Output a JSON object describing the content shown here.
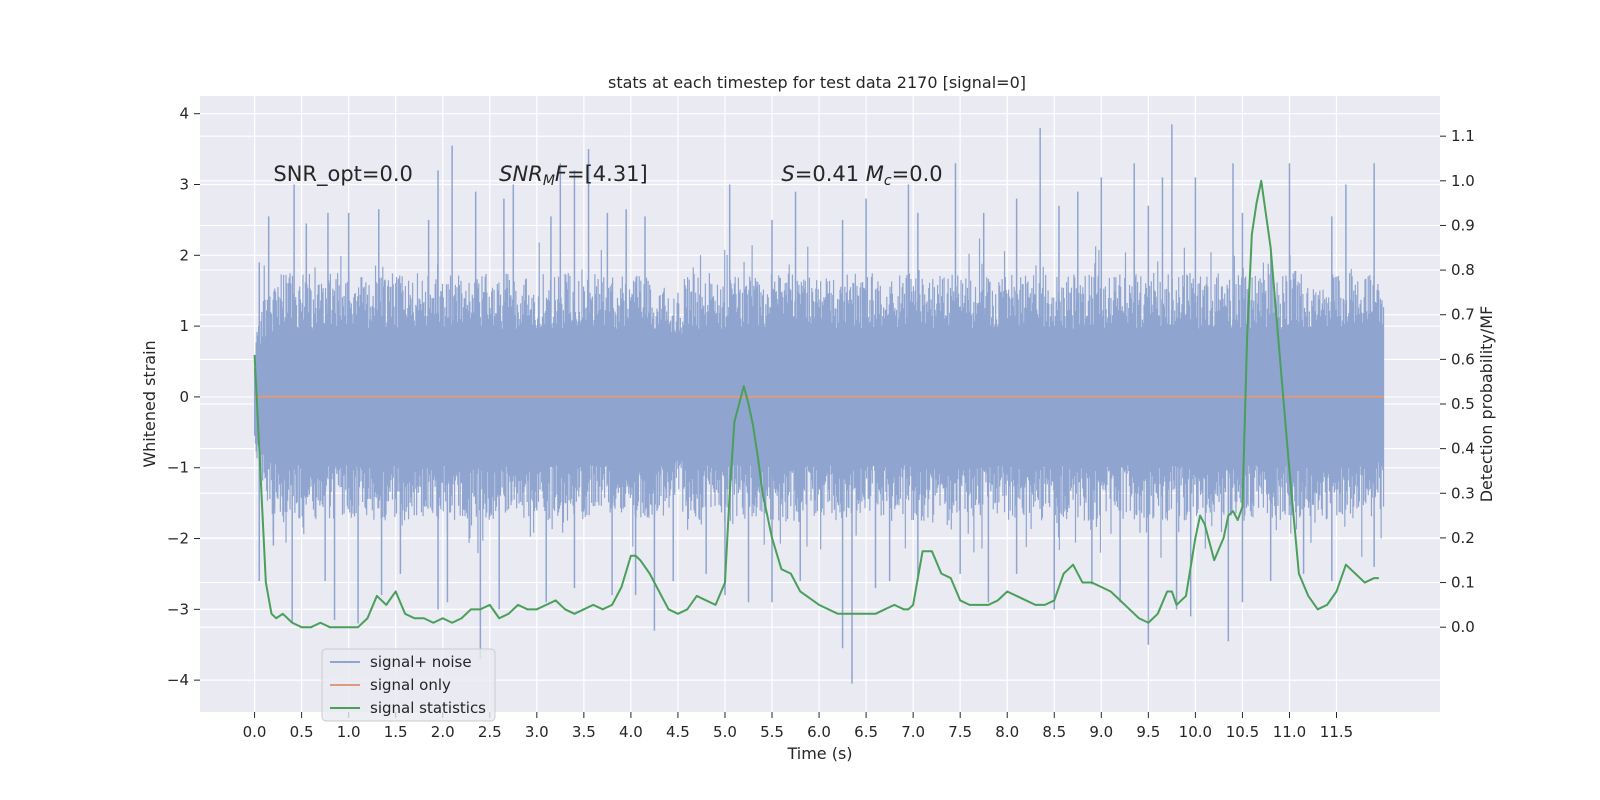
{
  "chart_data": {
    "type": "line",
    "title": "stats at each timestep for test data 2170 [signal=0]",
    "xlabel": "Time (s)",
    "ylabel": "Whitened strain",
    "y2label": "Detection probability/MF",
    "xlim": [
      -0.58,
      12.6
    ],
    "ylim": [
      -4.45,
      4.25
    ],
    "y2lim": [
      -0.19,
      1.19
    ],
    "x_ticks": [
      0.0,
      0.5,
      1.0,
      1.5,
      2.0,
      2.5,
      3.0,
      3.5,
      4.0,
      4.5,
      5.0,
      5.5,
      6.0,
      6.5,
      7.0,
      7.5,
      8.0,
      8.5,
      9.0,
      9.5,
      10.0,
      10.5,
      11.0,
      11.5
    ],
    "x_tick_labels": [
      "0.0",
      "0.5",
      "1.0",
      "1.5",
      "2.0",
      "2.5",
      "3.0",
      "3.5",
      "4.0",
      "4.5",
      "5.0",
      "5.5",
      "6.0",
      "6.5",
      "7.0",
      "7.5",
      "8.0",
      "8.5",
      "9.0",
      "9.5",
      "10.0",
      "10.5",
      "11.0",
      "11.5"
    ],
    "y_ticks": [
      4,
      3,
      2,
      1,
      0,
      -1,
      -2,
      -3,
      -4
    ],
    "y_tick_labels": [
      "4",
      "3",
      "2",
      "1",
      "0",
      "−1",
      "−2",
      "−3",
      "−4"
    ],
    "y2_ticks": [
      1.1,
      1.0,
      0.9,
      0.8,
      0.7,
      0.6,
      0.5,
      0.4,
      0.3,
      0.2,
      0.1,
      0.0
    ],
    "y2_tick_labels": [
      "1.1",
      "1.0",
      "0.9",
      "0.8",
      "0.7",
      "0.6",
      "0.5",
      "0.4",
      "0.3",
      "0.2",
      "0.1",
      "0.0"
    ],
    "grid": true,
    "legend": {
      "placement": "lower-left",
      "entries": [
        "signal+ noise",
        "signal only",
        "signal statistics"
      ]
    },
    "annotations": [
      {
        "x": 0.2,
        "y": 3.05,
        "parts": [
          {
            "text": "SNR_opt=0.0"
          }
        ]
      },
      {
        "x": 2.6,
        "y": 3.05,
        "parts": [
          {
            "text": "SNR",
            "italic": true
          },
          {
            "text": "M",
            "italic": true,
            "sub": true
          },
          {
            "text": "F",
            "italic": true
          },
          {
            "text": "=[4.31]"
          }
        ]
      },
      {
        "x": 5.6,
        "y": 3.05,
        "parts": [
          {
            "text": "S",
            "italic": true
          },
          {
            "text": "=0.41   "
          },
          {
            "text": "M",
            "italic": true
          },
          {
            "text": "c",
            "italic": true,
            "sub": true
          },
          {
            "text": "=0.0"
          }
        ]
      }
    ],
    "series": [
      {
        "name": "signal+ noise",
        "color": "#8fa5d0",
        "axis": "left",
        "x_range": [
          0.0,
          12.0
        ],
        "envelope": {
          "x": [
            0.0,
            0.05,
            0.1,
            0.2,
            0.3,
            0.5,
            0.8,
            1.0,
            1.5,
            2.0,
            2.5,
            3.0,
            3.5,
            4.0,
            4.3,
            4.4,
            4.5,
            4.6,
            5.0,
            5.5,
            6.0,
            6.5,
            7.0,
            7.5,
            8.0,
            8.5,
            9.0,
            9.5,
            10.0,
            10.5,
            11.0,
            11.5,
            11.9,
            12.0
          ],
          "band": [
            0.7,
            1.2,
            1.5,
            1.7,
            1.75,
            1.75,
            1.75,
            1.75,
            1.75,
            1.75,
            1.75,
            1.75,
            1.75,
            1.75,
            1.75,
            1.6,
            1.5,
            1.75,
            1.75,
            1.75,
            1.75,
            1.75,
            1.75,
            1.75,
            1.75,
            1.75,
            1.75,
            1.75,
            1.75,
            1.75,
            1.75,
            1.75,
            1.75,
            1.6
          ]
        },
        "spikes_up": [
          [
            0.05,
            1.9
          ],
          [
            0.15,
            2.55
          ],
          [
            0.42,
            3.0
          ],
          [
            0.55,
            2.45
          ],
          [
            0.78,
            2.6
          ],
          [
            1.0,
            2.6
          ],
          [
            1.32,
            2.65
          ],
          [
            1.85,
            2.5
          ],
          [
            1.95,
            3.2
          ],
          [
            2.1,
            3.55
          ],
          [
            2.35,
            2.9
          ],
          [
            2.65,
            2.8
          ],
          [
            2.75,
            3.0
          ],
          [
            3.15,
            2.55
          ],
          [
            3.25,
            3.3
          ],
          [
            3.4,
            3.2
          ],
          [
            3.55,
            3.5
          ],
          [
            3.75,
            2.6
          ],
          [
            3.95,
            2.65
          ],
          [
            4.15,
            2.55
          ],
          [
            5.05,
            3.0
          ],
          [
            5.5,
            2.5
          ],
          [
            5.75,
            2.9
          ],
          [
            6.25,
            2.5
          ],
          [
            6.5,
            2.8
          ],
          [
            6.95,
            3.0
          ],
          [
            7.05,
            2.6
          ],
          [
            7.45,
            3.3
          ],
          [
            7.75,
            2.6
          ],
          [
            8.1,
            2.8
          ],
          [
            8.35,
            3.8
          ],
          [
            8.55,
            2.7
          ],
          [
            8.75,
            2.9
          ],
          [
            9.0,
            3.1
          ],
          [
            9.35,
            3.3
          ],
          [
            9.5,
            2.7
          ],
          [
            9.65,
            3.1
          ],
          [
            9.75,
            3.85
          ],
          [
            10.0,
            3.1
          ],
          [
            10.4,
            3.3
          ],
          [
            10.5,
            2.6
          ],
          [
            11.0,
            3.3
          ],
          [
            11.45,
            2.55
          ],
          [
            11.6,
            3.0
          ],
          [
            11.9,
            3.3
          ]
        ],
        "spikes_down": [
          [
            0.05,
            -2.6
          ],
          [
            0.2,
            -2.1
          ],
          [
            0.4,
            -3.2
          ],
          [
            0.75,
            -2.6
          ],
          [
            0.85,
            -3.15
          ],
          [
            1.1,
            -3.2
          ],
          [
            1.35,
            -2.8
          ],
          [
            1.55,
            -2.5
          ],
          [
            1.95,
            -3.0
          ],
          [
            2.05,
            -2.9
          ],
          [
            2.4,
            -3.7
          ],
          [
            2.6,
            -3.0
          ],
          [
            3.1,
            -2.9
          ],
          [
            3.4,
            -2.7
          ],
          [
            3.8,
            -2.8
          ],
          [
            4.05,
            -2.8
          ],
          [
            4.25,
            -3.3
          ],
          [
            4.45,
            -2.6
          ],
          [
            4.8,
            -2.5
          ],
          [
            5.0,
            -2.8
          ],
          [
            5.25,
            -2.9
          ],
          [
            5.5,
            -2.9
          ],
          [
            5.8,
            -2.6
          ],
          [
            6.25,
            -3.55
          ],
          [
            6.35,
            -4.05
          ],
          [
            6.6,
            -2.7
          ],
          [
            6.75,
            -2.6
          ],
          [
            7.05,
            -2.6
          ],
          [
            7.5,
            -2.5
          ],
          [
            7.8,
            -2.9
          ],
          [
            8.1,
            -2.5
          ],
          [
            8.5,
            -3.0
          ],
          [
            8.9,
            -2.65
          ],
          [
            9.2,
            -2.9
          ],
          [
            9.5,
            -3.5
          ],
          [
            9.8,
            -3.0
          ],
          [
            9.95,
            -3.1
          ],
          [
            10.35,
            -3.45
          ],
          [
            10.5,
            -2.9
          ],
          [
            10.8,
            -2.6
          ],
          [
            11.15,
            -2.5
          ],
          [
            11.45,
            -2.6
          ],
          [
            11.9,
            -2.4
          ]
        ]
      },
      {
        "name": "signal only",
        "color": "#dd9a7c",
        "axis": "left",
        "x": [
          0.0,
          12.0
        ],
        "values": [
          0.0,
          0.0
        ]
      },
      {
        "name": "signal statistics",
        "color": "#4a9f5a",
        "axis": "right",
        "x": [
          0.0,
          0.05,
          0.12,
          0.18,
          0.23,
          0.3,
          0.4,
          0.5,
          0.6,
          0.7,
          0.8,
          0.9,
          1.0,
          1.1,
          1.2,
          1.3,
          1.4,
          1.5,
          1.6,
          1.7,
          1.8,
          1.9,
          2.0,
          2.1,
          2.2,
          2.3,
          2.4,
          2.5,
          2.6,
          2.7,
          2.8,
          2.9,
          3.0,
          3.1,
          3.2,
          3.3,
          3.4,
          3.5,
          3.6,
          3.7,
          3.8,
          3.9,
          4.0,
          4.05,
          4.1,
          4.2,
          4.3,
          4.4,
          4.5,
          4.6,
          4.7,
          4.8,
          4.9,
          5.0,
          5.05,
          5.1,
          5.15,
          5.2,
          5.25,
          5.3,
          5.35,
          5.4,
          5.5,
          5.6,
          5.7,
          5.8,
          6.0,
          6.2,
          6.4,
          6.6,
          6.7,
          6.8,
          6.9,
          6.95,
          7.0,
          7.1,
          7.2,
          7.3,
          7.4,
          7.5,
          7.6,
          7.7,
          7.8,
          7.9,
          8.0,
          8.1,
          8.2,
          8.3,
          8.4,
          8.5,
          8.6,
          8.7,
          8.8,
          8.9,
          9.0,
          9.1,
          9.2,
          9.3,
          9.4,
          9.5,
          9.6,
          9.7,
          9.75,
          9.8,
          9.9,
          10.0,
          10.05,
          10.1,
          10.2,
          10.3,
          10.35,
          10.4,
          10.45,
          10.5,
          10.55,
          10.6,
          10.65,
          10.7,
          10.8,
          10.9,
          11.0,
          11.1,
          11.2,
          11.3,
          11.4,
          11.5,
          11.6,
          11.7,
          11.8,
          11.9,
          11.95
        ],
        "values": [
          0.61,
          0.4,
          0.1,
          0.03,
          0.02,
          0.03,
          0.01,
          0.0,
          0.0,
          0.01,
          0.0,
          0.0,
          0.0,
          0.0,
          0.02,
          0.07,
          0.05,
          0.08,
          0.03,
          0.02,
          0.02,
          0.01,
          0.02,
          0.01,
          0.02,
          0.04,
          0.04,
          0.05,
          0.02,
          0.03,
          0.05,
          0.04,
          0.04,
          0.05,
          0.06,
          0.04,
          0.03,
          0.04,
          0.05,
          0.04,
          0.05,
          0.09,
          0.16,
          0.16,
          0.15,
          0.12,
          0.08,
          0.04,
          0.03,
          0.04,
          0.07,
          0.06,
          0.05,
          0.1,
          0.3,
          0.46,
          0.5,
          0.54,
          0.5,
          0.45,
          0.38,
          0.3,
          0.2,
          0.13,
          0.12,
          0.08,
          0.05,
          0.03,
          0.03,
          0.03,
          0.04,
          0.05,
          0.04,
          0.04,
          0.05,
          0.17,
          0.17,
          0.12,
          0.11,
          0.06,
          0.05,
          0.05,
          0.05,
          0.06,
          0.08,
          0.07,
          0.06,
          0.05,
          0.05,
          0.06,
          0.12,
          0.14,
          0.1,
          0.1,
          0.09,
          0.08,
          0.06,
          0.04,
          0.02,
          0.01,
          0.03,
          0.08,
          0.08,
          0.05,
          0.07,
          0.2,
          0.25,
          0.23,
          0.15,
          0.2,
          0.25,
          0.26,
          0.24,
          0.27,
          0.65,
          0.88,
          0.95,
          1.0,
          0.85,
          0.6,
          0.35,
          0.12,
          0.07,
          0.04,
          0.05,
          0.08,
          0.14,
          0.12,
          0.1,
          0.11,
          0.11
        ]
      }
    ]
  }
}
